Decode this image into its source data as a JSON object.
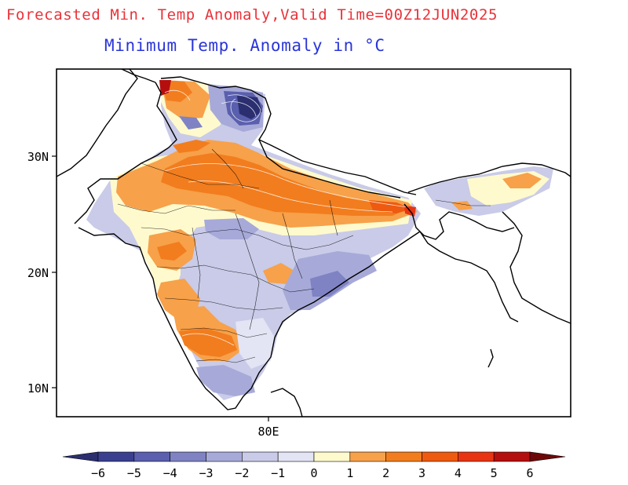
{
  "header": {
    "title": "Forecasted Min. Temp Anomaly,Valid Time=00Z12JUN2025",
    "subtitle": "Minimum Temp. Anomaly in °C"
  },
  "map": {
    "lat_labels": [
      "30N",
      "20N",
      "10N"
    ],
    "lon_labels": [
      "80E"
    ]
  },
  "colorbar": {
    "tick_labels": [
      "−6",
      "−5",
      "−4",
      "−3",
      "−2",
      "−1",
      "0",
      "1",
      "2",
      "3",
      "4",
      "5",
      "6"
    ],
    "colors": [
      "#2b2f70",
      "#3a3f8f",
      "#5a5fae",
      "#7f83c4",
      "#a7aad8",
      "#c9cbe8",
      "#e3e4f4",
      "#fffacd",
      "#f7a14a",
      "#f27d1e",
      "#ee5a10",
      "#e83412",
      "#b50e0e",
      "#6e0808"
    ]
  }
}
